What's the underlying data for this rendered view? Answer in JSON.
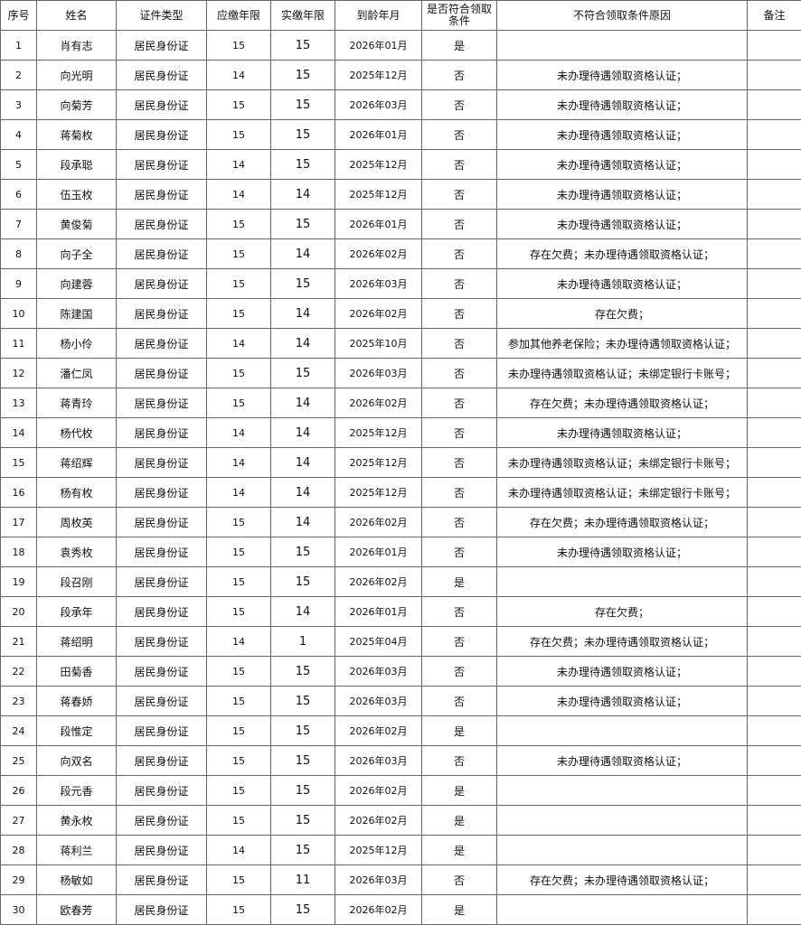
{
  "table": {
    "headers": [
      "序号",
      "姓名",
      "证件类型",
      "应缴年限",
      "实缴年限",
      "到龄年月",
      "是否符合领取条件",
      "不符合领取条件原因",
      "备注"
    ],
    "rows": [
      [
        "1",
        "肖有志",
        "居民身份证",
        "15",
        "15",
        "2026年01月",
        "是",
        "",
        ""
      ],
      [
        "2",
        "向光明",
        "居民身份证",
        "14",
        "15",
        "2025年12月",
        "否",
        "未办理待遇领取资格认证；",
        ""
      ],
      [
        "3",
        "向菊芳",
        "居民身份证",
        "15",
        "15",
        "2026年03月",
        "否",
        "未办理待遇领取资格认证；",
        ""
      ],
      [
        "4",
        "蒋菊枚",
        "居民身份证",
        "15",
        "15",
        "2026年01月",
        "否",
        "未办理待遇领取资格认证；",
        ""
      ],
      [
        "5",
        "段承聪",
        "居民身份证",
        "14",
        "15",
        "2025年12月",
        "否",
        "未办理待遇领取资格认证；",
        ""
      ],
      [
        "6",
        "伍玉枚",
        "居民身份证",
        "14",
        "14",
        "2025年12月",
        "否",
        "未办理待遇领取资格认证；",
        ""
      ],
      [
        "7",
        "黄俊菊",
        "居民身份证",
        "15",
        "15",
        "2026年01月",
        "否",
        "未办理待遇领取资格认证；",
        ""
      ],
      [
        "8",
        "向子全",
        "居民身份证",
        "15",
        "14",
        "2026年02月",
        "否",
        "存在欠费；未办理待遇领取资格认证；",
        ""
      ],
      [
        "9",
        "向建蓉",
        "居民身份证",
        "15",
        "15",
        "2026年03月",
        "否",
        "未办理待遇领取资格认证；",
        ""
      ],
      [
        "10",
        "陈建国",
        "居民身份证",
        "15",
        "14",
        "2026年02月",
        "否",
        "存在欠费；",
        ""
      ],
      [
        "11",
        "杨小伶",
        "居民身份证",
        "14",
        "14",
        "2025年10月",
        "否",
        "参加其他养老保险；未办理待遇领取资格认证；",
        ""
      ],
      [
        "12",
        "潘仁凤",
        "居民身份证",
        "15",
        "15",
        "2026年03月",
        "否",
        "未办理待遇领取资格认证；未绑定银行卡账号；",
        ""
      ],
      [
        "13",
        "蒋青玲",
        "居民身份证",
        "15",
        "14",
        "2026年02月",
        "否",
        "存在欠费；未办理待遇领取资格认证；",
        ""
      ],
      [
        "14",
        "杨代枚",
        "居民身份证",
        "14",
        "14",
        "2025年12月",
        "否",
        "未办理待遇领取资格认证；",
        ""
      ],
      [
        "15",
        "蒋绍辉",
        "居民身份证",
        "14",
        "14",
        "2025年12月",
        "否",
        "未办理待遇领取资格认证；未绑定银行卡账号；",
        ""
      ],
      [
        "16",
        "杨有枚",
        "居民身份证",
        "14",
        "14",
        "2025年12月",
        "否",
        "未办理待遇领取资格认证；未绑定银行卡账号；",
        ""
      ],
      [
        "17",
        "周枚英",
        "居民身份证",
        "15",
        "14",
        "2026年02月",
        "否",
        "存在欠费；未办理待遇领取资格认证；",
        ""
      ],
      [
        "18",
        "袁秀枚",
        "居民身份证",
        "15",
        "15",
        "2026年01月",
        "否",
        "未办理待遇领取资格认证；",
        ""
      ],
      [
        "19",
        "段召刚",
        "居民身份证",
        "15",
        "15",
        "2026年02月",
        "是",
        "",
        ""
      ],
      [
        "20",
        "段承年",
        "居民身份证",
        "15",
        "14",
        "2026年01月",
        "否",
        "存在欠费；",
        ""
      ],
      [
        "21",
        "蒋绍明",
        "居民身份证",
        "14",
        "1",
        "2025年04月",
        "否",
        "存在欠费；未办理待遇领取资格认证；",
        ""
      ],
      [
        "22",
        "田菊香",
        "居民身份证",
        "15",
        "15",
        "2026年03月",
        "否",
        "未办理待遇领取资格认证；",
        ""
      ],
      [
        "23",
        "蒋春娇",
        "居民身份证",
        "15",
        "15",
        "2026年03月",
        "否",
        "未办理待遇领取资格认证；",
        ""
      ],
      [
        "24",
        "段惟定",
        "居民身份证",
        "15",
        "15",
        "2026年02月",
        "是",
        "",
        ""
      ],
      [
        "25",
        "向双名",
        "居民身份证",
        "15",
        "15",
        "2026年03月",
        "否",
        "未办理待遇领取资格认证；",
        ""
      ],
      [
        "26",
        "段元香",
        "居民身份证",
        "15",
        "15",
        "2026年02月",
        "是",
        "",
        ""
      ],
      [
        "27",
        "黄永枚",
        "居民身份证",
        "15",
        "15",
        "2026年02月",
        "是",
        "",
        ""
      ],
      [
        "28",
        "蒋利兰",
        "居民身份证",
        "14",
        "15",
        "2025年12月",
        "是",
        "",
        ""
      ],
      [
        "29",
        "杨敏如",
        "居民身份证",
        "15",
        "11",
        "2026年03月",
        "否",
        "存在欠费；未办理待遇领取资格认证；",
        ""
      ],
      [
        "30",
        "欧春芳",
        "居民身份证",
        "15",
        "15",
        "2026年02月",
        "是",
        "",
        ""
      ]
    ]
  }
}
